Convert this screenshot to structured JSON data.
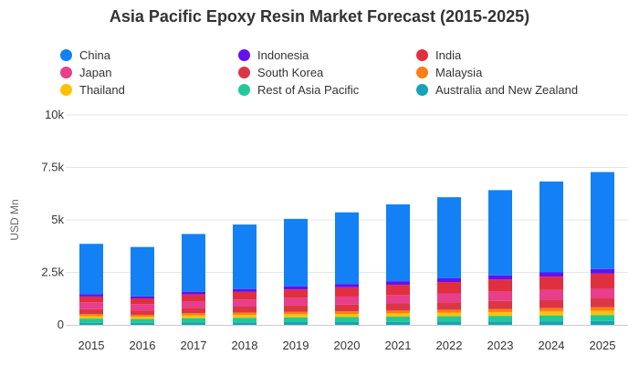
{
  "chart_data": {
    "type": "bar",
    "stacked": true,
    "title": "Asia Pacific Epoxy Resin Market Forecast (2015-2025)",
    "xlabel": "",
    "ylabel": "USD Mn",
    "ylim": [
      0,
      10000
    ],
    "yticks": [
      0,
      2500,
      5000,
      7500,
      10000
    ],
    "ytick_labels": [
      "0",
      "2.5k",
      "5k",
      "7.5k",
      "10k"
    ],
    "grid": true,
    "legend_position": "top",
    "categories": [
      "2015",
      "2016",
      "2017",
      "2018",
      "2019",
      "2020",
      "2021",
      "2022",
      "2023",
      "2024",
      "2025"
    ],
    "series": [
      {
        "name": "Australia and New Zealand",
        "color": "#17a2b8",
        "values": [
          100,
          90,
          110,
          120,
          130,
          130,
          140,
          150,
          160,
          170,
          180
        ]
      },
      {
        "name": "Rest of Asia Pacific",
        "color": "#20c997",
        "values": [
          200,
          190,
          210,
          220,
          230,
          240,
          250,
          260,
          270,
          280,
          290
        ]
      },
      {
        "name": "Thailand",
        "color": "#ffc107",
        "values": [
          120,
          110,
          130,
          140,
          150,
          150,
          160,
          170,
          180,
          190,
          200
        ]
      },
      {
        "name": "Malaysia",
        "color": "#fd7e14",
        "values": [
          100,
          90,
          110,
          110,
          120,
          130,
          130,
          140,
          150,
          160,
          170
        ]
      },
      {
        "name": "South Korea",
        "color": "#dc3545",
        "values": [
          230,
          210,
          250,
          280,
          300,
          320,
          340,
          360,
          380,
          400,
          420
        ]
      },
      {
        "name": "Japan",
        "color": "#e83e8c",
        "values": [
          330,
          300,
          320,
          340,
          360,
          380,
          400,
          420,
          440,
          460,
          480
        ]
      },
      {
        "name": "India",
        "color": "#e0303f",
        "values": [
          270,
          270,
          320,
          360,
          400,
          440,
          490,
          540,
          590,
          640,
          700
        ]
      },
      {
        "name": "Indonesia",
        "color": "#6610f2",
        "values": [
          110,
          100,
          130,
          140,
          150,
          160,
          170,
          180,
          190,
          200,
          220
        ]
      },
      {
        "name": "China",
        "color": "#1380f5",
        "values": [
          2400,
          2350,
          2750,
          3070,
          3210,
          3410,
          3660,
          3860,
          4060,
          4330,
          4620
        ]
      }
    ]
  },
  "legend": [
    {
      "label": "China",
      "color": "#1380f5"
    },
    {
      "label": "Indonesia",
      "color": "#6610f2"
    },
    {
      "label": "India",
      "color": "#e0303f"
    },
    {
      "label": "Japan",
      "color": "#e83e8c"
    },
    {
      "label": "South Korea",
      "color": "#dc3545"
    },
    {
      "label": "Malaysia",
      "color": "#fd7e14"
    },
    {
      "label": "Thailand",
      "color": "#ffc107"
    },
    {
      "label": "Rest of Asia Pacific",
      "color": "#20c997"
    },
    {
      "label": "Australia and New Zealand",
      "color": "#17a2b8"
    }
  ]
}
